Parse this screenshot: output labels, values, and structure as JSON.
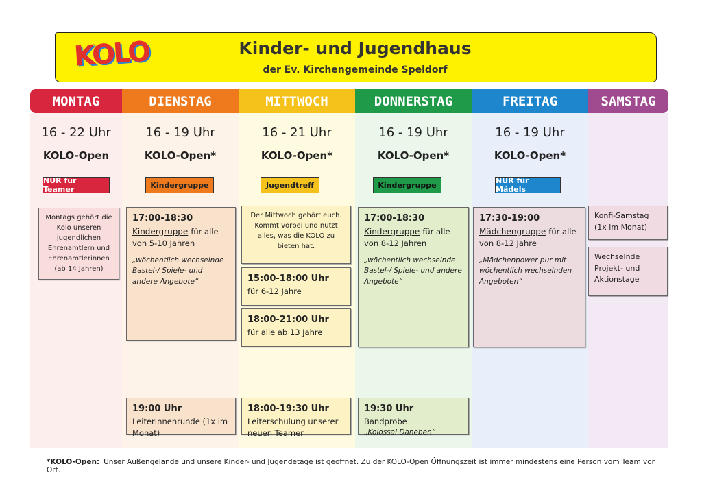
{
  "header": {
    "logo": "KOLO",
    "title": "Kinder- und Jugendhaus",
    "subtitle": "der Ev. Kirchengemeinde Speldorf"
  },
  "days": [
    {
      "name": "MONTAG",
      "hours": "16 - 22 Uhr",
      "open": "KOLO-Open",
      "tag": "NUR für Teamer",
      "boxes": [
        {
          "text": "Montags gehört die Kolo unseren jugendlichen Ehrenamtlern und Ehrenamtlerinnen (ab 14 Jahren)"
        }
      ]
    },
    {
      "name": "DIENSTAG",
      "hours": "16 - 19 Uhr",
      "open": "KOLO-Open*",
      "tag": "Kindergruppe",
      "boxes": [
        {
          "time": "17:00-18:30",
          "title": "Kindergruppe",
          "text": "für alle von 5-10 Jahren",
          "note": "„wöchentlich wechselnde Bastel-/ Spiele- und andere Angebote“"
        },
        {
          "time": "19:00 Uhr",
          "text": "LeiterInnenrunde (1x im Monat)"
        }
      ]
    },
    {
      "name": "MITTWOCH",
      "hours": "16 - 21 Uhr",
      "open": "KOLO-Open*",
      "tag": "Jugendtreff",
      "boxes": [
        {
          "text": "Der Mittwoch gehört euch. Kommt vorbei und nutzt alles, was die KOLO zu bieten hat."
        },
        {
          "time": "15:00-18:00 Uhr",
          "text": "für 6-12 Jahre"
        },
        {
          "time": "18:00-21:00 Uhr",
          "text": "für alle ab 13 Jahre"
        },
        {
          "time": "18:00-19:30 Uhr",
          "text": "Leiterschulung unserer neuen Teamer"
        }
      ]
    },
    {
      "name": "DONNERSTAG",
      "hours": "16 - 19 Uhr",
      "open": "KOLO-Open*",
      "tag": "Kindergruppe",
      "boxes": [
        {
          "time": "17:00-18:30",
          "title": "Kindergruppe",
          "text": "für alle von 8-12 Jahren",
          "note": "„wöchentlich wechselnde Bastel-/ Spiele- und andere Angebote“"
        },
        {
          "time": "19:30 Uhr",
          "text": "Bandprobe",
          "note": "„Kolossal Daneben“"
        }
      ]
    },
    {
      "name": "FREITAG",
      "hours": "16 - 19 Uhr",
      "open": "KOLO-Open*",
      "tag": "NUR für Mädels",
      "boxes": [
        {
          "time": "17:30-19:00",
          "title": "Mädchengruppe",
          "text": "für alle von 8-12 Jahre",
          "note": "„Mädchenpower pur mit wöchentlich wechselnden Angeboten“"
        }
      ]
    },
    {
      "name": "SAMSTAG",
      "boxes": [
        {
          "text": "Konfi-Samstag (1x im Monat)"
        },
        {
          "text": "Wechselnde Projekt- und Aktionstage"
        }
      ]
    }
  ],
  "footer": {
    "label": "*KOLO-Open:",
    "text": "Unser Außengelände und unsere Kinder- und Jugendetage ist geöffnet. Zu der KOLO-Open Öffnungszeit ist immer mindestens eine Person vom Team vor Ort."
  }
}
